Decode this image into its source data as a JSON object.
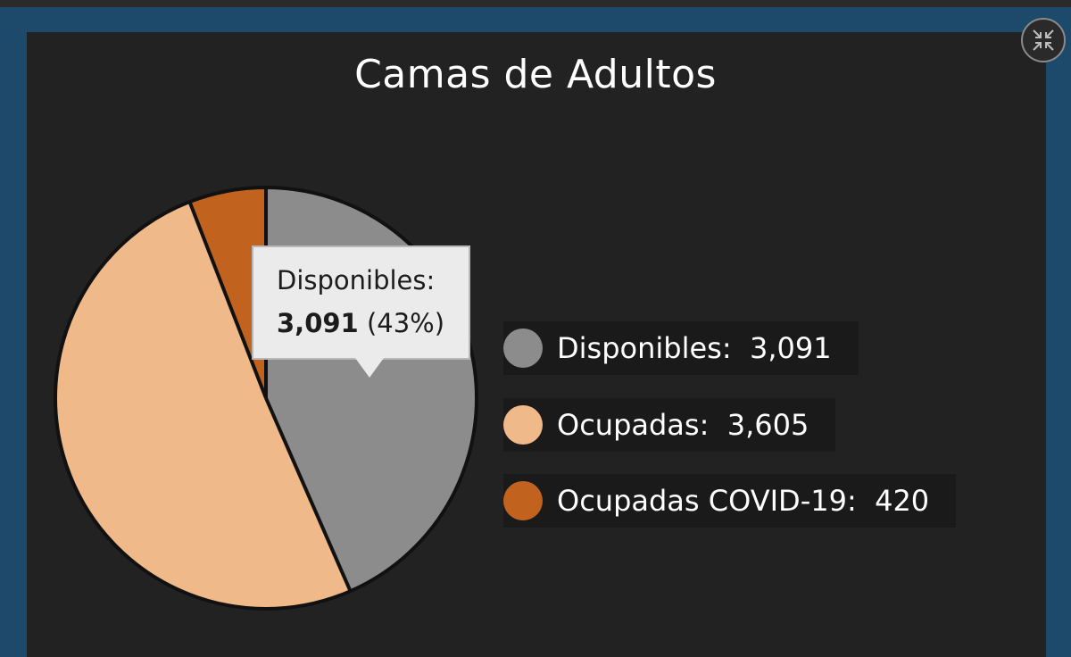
{
  "chart_data": {
    "type": "pie",
    "title": "Camas de Adultos",
    "categories": [
      "Disponibles",
      "Ocupadas",
      "Ocupadas COVID-19"
    ],
    "values": [
      3091,
      3605,
      420
    ],
    "colors": [
      "#8c8c8c",
      "#f0b98a",
      "#c1631e"
    ],
    "legend_position": "right",
    "legend": [
      {
        "label": "Disponibles:",
        "value": "3,091"
      },
      {
        "label": "Ocupadas:",
        "value": "3,605"
      },
      {
        "label": "Ocupadas COVID-19:",
        "value": "420"
      }
    ],
    "tooltip": {
      "label": "Disponibles:",
      "value": "3,091",
      "percent": "(43%)"
    }
  },
  "icons": {
    "collapse": "collapse-arrows-icon"
  }
}
